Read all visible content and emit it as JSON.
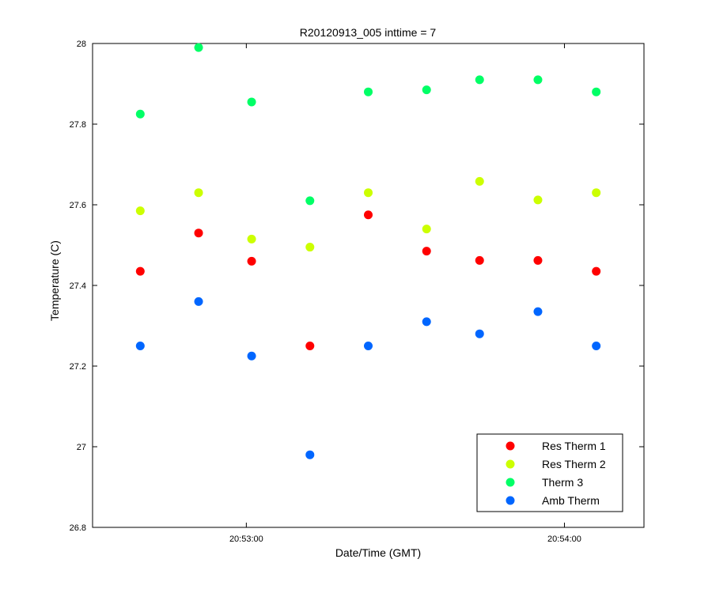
{
  "chart_data": {
    "type": "scatter",
    "title": "R20120913_005 inttime = 7",
    "xlabel": "Date/Time (GMT)",
    "ylabel": "Temperature (C)",
    "x_unit": "time of day (GMT)",
    "xlim": [
      "20:52:31",
      "20:54:15"
    ],
    "ylim": [
      26.8,
      28
    ],
    "x_ticks": [
      "20:53:00",
      "20:54:00"
    ],
    "y_ticks": [
      "26.8",
      "27",
      "27.2",
      "27.4",
      "27.6",
      "27.8",
      "28"
    ],
    "x": [
      "20:52:40",
      "20:52:51",
      "20:53:01",
      "20:53:12",
      "20:53:23",
      "20:53:34",
      "20:53:44",
      "20:53:55",
      "20:54:06"
    ],
    "series": [
      {
        "name": "Res Therm 1",
        "color": "#ff0000",
        "values": [
          27.435,
          27.53,
          27.46,
          27.25,
          27.575,
          27.485,
          27.462,
          27.462,
          27.435
        ]
      },
      {
        "name": "Res Therm 2",
        "color": "#ccff00",
        "values": [
          27.585,
          27.63,
          27.515,
          27.495,
          27.63,
          27.54,
          27.658,
          27.612,
          27.63
        ]
      },
      {
        "name": "Therm 3",
        "color": "#00ff66",
        "values": [
          27.825,
          27.99,
          27.855,
          27.61,
          27.88,
          27.885,
          27.91,
          27.91,
          27.88
        ]
      },
      {
        "name": "Amb Therm",
        "color": "#0066ff",
        "values": [
          27.25,
          27.36,
          27.225,
          26.98,
          27.25,
          27.31,
          27.28,
          27.335,
          27.25
        ]
      }
    ],
    "grid": false,
    "legend_position": "bottom-right"
  }
}
